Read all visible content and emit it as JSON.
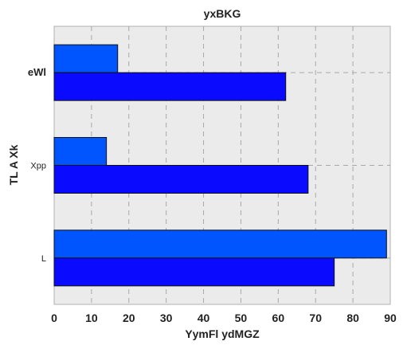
{
  "chart_data": {
    "type": "bar",
    "orientation": "horizontal",
    "title": "yxBKG",
    "xlabel": "YymFl ydMGZ",
    "ylabel": "TL A Xk",
    "categories": [
      "eWl",
      "Xpp",
      "L"
    ],
    "category_bold": [
      true,
      false,
      false
    ],
    "series": [
      {
        "values": [
          62,
          68,
          75
        ],
        "color": "#0a0aff"
      },
      {
        "values": [
          17,
          14,
          89
        ],
        "color": "#0055ff"
      }
    ],
    "xlim": [
      0,
      90
    ],
    "xticks": [
      0,
      10,
      20,
      30,
      40,
      50,
      60,
      70,
      80,
      90
    ],
    "grid": true,
    "background": "#ebebeb"
  }
}
